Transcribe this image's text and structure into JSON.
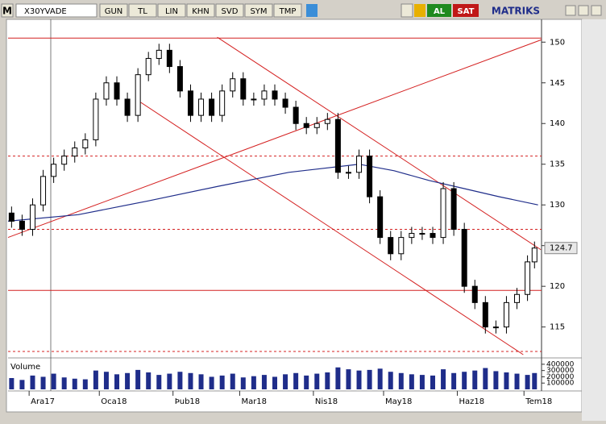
{
  "toolbar": {
    "logo": "M",
    "symbol": "X30YVADE",
    "buttons": [
      "GUN",
      "TL",
      "LIN",
      "KHN",
      "SVD",
      "SYM",
      "TMP"
    ],
    "buy": "AL",
    "sell": "SAT",
    "brand": "MATRIKS"
  },
  "chart_data": {
    "type": "candlestick",
    "x": [
      1,
      4,
      7,
      10,
      13,
      16,
      19,
      22,
      25,
      28,
      31,
      34,
      37,
      40,
      43,
      46,
      49,
      52,
      55,
      58,
      61,
      64,
      67,
      70,
      73,
      76,
      79,
      82,
      85,
      88,
      91,
      94,
      97,
      100,
      103,
      106,
      109,
      112,
      115,
      118,
      121,
      124,
      127,
      130,
      133,
      136,
      139,
      142,
      145,
      148,
      150
    ],
    "open": [
      129,
      128,
      127,
      130,
      133.5,
      135,
      136,
      137,
      138,
      143,
      145,
      143,
      141,
      146,
      148,
      149,
      147,
      144,
      141,
      143,
      141,
      144,
      145.5,
      143,
      143,
      144,
      143,
      142,
      140,
      139.5,
      140,
      140.5,
      134,
      134,
      136,
      131,
      126,
      124,
      126,
      126.5,
      126.5,
      126,
      132,
      127,
      120,
      118,
      115,
      115,
      118,
      119,
      123
    ],
    "high": [
      129.8,
      128.8,
      130.8,
      134.3,
      135.8,
      136.8,
      137.8,
      138.8,
      143.8,
      145.8,
      145.8,
      143.8,
      146.8,
      148.8,
      149.8,
      149.8,
      147.8,
      144.8,
      143.8,
      143.8,
      144.8,
      146.3,
      146.3,
      143.8,
      144.8,
      144.8,
      143.8,
      142.8,
      140.8,
      140.8,
      141.3,
      141.3,
      134.8,
      136.8,
      136.8,
      131.8,
      126.8,
      126.8,
      127.3,
      127.3,
      127.3,
      132.8,
      132.8,
      127.8,
      120.8,
      118.8,
      115.8,
      118.8,
      119.8,
      123.8,
      125.5
    ],
    "low": [
      127.2,
      126.2,
      126.2,
      129.2,
      132.7,
      134.2,
      135.2,
      136.2,
      137.2,
      142.2,
      142.2,
      140.2,
      140.2,
      145.2,
      147.2,
      146.2,
      143.2,
      140.2,
      140.2,
      140.2,
      140.2,
      143.2,
      142.2,
      142.2,
      142.2,
      142.2,
      141.2,
      139.2,
      138.7,
      138.7,
      139.2,
      133.2,
      133.2,
      133.2,
      130.2,
      125.2,
      123.2,
      123.2,
      125.2,
      125.7,
      125.2,
      125.2,
      126.2,
      119.2,
      117.2,
      114.2,
      114.2,
      114.2,
      117.2,
      118.2,
      122.2
    ],
    "close": [
      128,
      127,
      130,
      133.5,
      135,
      136,
      137,
      138,
      143,
      145,
      143,
      141,
      146,
      148,
      149,
      147,
      144,
      141,
      143,
      141,
      144,
      145.5,
      143,
      143,
      144,
      143,
      142,
      140,
      139.5,
      140,
      140.5,
      134,
      134,
      136,
      131,
      126,
      124,
      126,
      126.5,
      126.5,
      126,
      132,
      127,
      120,
      118,
      115,
      115,
      118,
      119,
      123,
      124.7
    ],
    "moving_average": {
      "x": [
        0,
        20,
        40,
        60,
        80,
        100,
        110,
        120,
        130,
        140,
        151
      ],
      "values": [
        128,
        128.8,
        130.5,
        132.3,
        134,
        135,
        134.2,
        133,
        132,
        131,
        130
      ],
      "color": "#1f2d8a"
    },
    "last_price": 124.7,
    "xlim": [
      0,
      152
    ],
    "ylim": [
      111.4,
      152.8
    ],
    "yticks": [
      115,
      120,
      125,
      130,
      135,
      140,
      145,
      150
    ],
    "xticks": [
      {
        "value": 6,
        "label": "Ara17"
      },
      {
        "value": 26,
        "label": "Oca18"
      },
      {
        "value": 47,
        "label": "Þub18"
      },
      {
        "value": 66,
        "label": "Mar18"
      },
      {
        "value": 87,
        "label": "Nis18"
      },
      {
        "value": 107,
        "label": "May18"
      },
      {
        "value": 128,
        "label": "Haz18"
      },
      {
        "value": 147,
        "label": "Tem18"
      }
    ],
    "hlines": [
      150.5,
      119.5
    ],
    "dashed_hlines": [
      136,
      127,
      112
    ],
    "trendlines": [
      [
        0,
        126,
        152,
        150.3
      ],
      [
        59.6,
        150.6,
        151.8,
        124.5
      ],
      [
        37.8,
        142.6,
        146.8,
        111.6
      ]
    ],
    "line_color": "#d42020",
    "volume": {
      "label": "Volume",
      "color": "#1f2d8a",
      "ylim": [
        0,
        450000
      ],
      "yticks": [
        100000,
        200000,
        300000,
        400000
      ],
      "values": [
        180000,
        150000,
        220000,
        200000,
        250000,
        190000,
        170000,
        160000,
        300000,
        280000,
        240000,
        260000,
        310000,
        270000,
        230000,
        250000,
        280000,
        260000,
        240000,
        200000,
        220000,
        250000,
        190000,
        210000,
        230000,
        200000,
        240000,
        260000,
        220000,
        250000,
        270000,
        350000,
        320000,
        300000,
        310000,
        330000,
        280000,
        260000,
        240000,
        230000,
        220000,
        320000,
        260000,
        280000,
        300000,
        340000,
        290000,
        270000,
        250000,
        230000,
        260000
      ]
    }
  }
}
